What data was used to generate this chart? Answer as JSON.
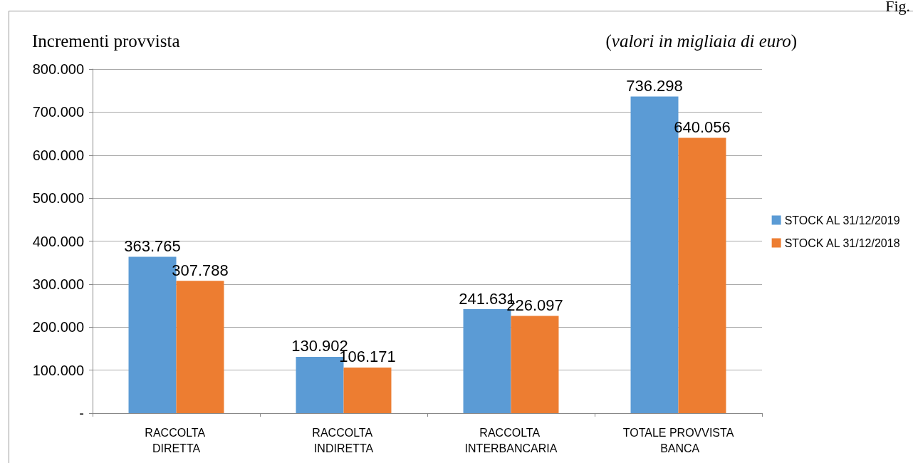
{
  "chart_data": {
    "type": "bar",
    "title": "Incrementi provvista",
    "subtitle": "(valori in migliaia di euro)",
    "annotations": [
      "Fig."
    ],
    "categories": [
      "RACCOLTA DIRETTA",
      "RACCOLTA INDIRETTA",
      "RACCOLTA INTERBANCARIA",
      "TOTALE PROVVISTA BANCA"
    ],
    "series": [
      {
        "name": "STOCK AL 31/12/2019",
        "color": "#5b9bd5",
        "values": [
          363765,
          130902,
          241631,
          736298
        ],
        "value_labels": [
          "363.765",
          "130.902",
          "241.631",
          "736.298"
        ]
      },
      {
        "name": "STOCK AL 31/12/2018",
        "color": "#ed7d31",
        "values": [
          307788,
          106171,
          226097,
          640056
        ],
        "value_labels": [
          "307.788",
          "106.171",
          "226.097",
          "640.056"
        ]
      }
    ],
    "ylim": [
      0,
      800000
    ],
    "yticks": [
      {
        "value": 0,
        "label": "-"
      },
      {
        "value": 100000,
        "label": "100.000"
      },
      {
        "value": 200000,
        "label": "200.000"
      },
      {
        "value": 300000,
        "label": "300.000"
      },
      {
        "value": 400000,
        "label": "400.000"
      },
      {
        "value": 500000,
        "label": "500.000"
      },
      {
        "value": 600000,
        "label": "600.000"
      },
      {
        "value": 700000,
        "label": "700.000"
      },
      {
        "value": 800000,
        "label": "800.000"
      }
    ],
    "grid": "y",
    "legend": "right"
  }
}
